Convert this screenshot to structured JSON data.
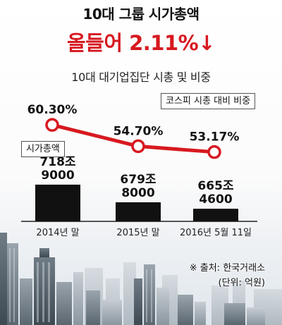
{
  "title": "10대 그룹 시가총액",
  "headline": "올들어 2.11%↓",
  "subtitle": "10대 대기업집단 시총 및 비중",
  "legend": {
    "kospi_share": "코스피 시총 대비 비중",
    "market_cap": "시가총액"
  },
  "source": {
    "line1": "※ 출처: 한국거래소",
    "line2": "(단위: 억원)"
  },
  "colors": {
    "accent": "#d71920",
    "bar": "#111111",
    "text": "#111111"
  },
  "chart_data": {
    "type": "bar",
    "categories": [
      "2014년 말",
      "2015년 말",
      "2016년 5월 11일"
    ],
    "series": [
      {
        "kind": "bar",
        "values": [
          7189000,
          6798000,
          6654600
        ],
        "labels_line1": [
          "718조",
          "679조",
          "665조"
        ],
        "labels_line2": [
          "9000",
          "8000",
          "4600"
        ]
      },
      {
        "kind": "line",
        "values": [
          60.3,
          54.7,
          53.17
        ],
        "labels": [
          "60.30%",
          "54.70%",
          "53.17%"
        ]
      }
    ],
    "title": "10대 대기업집단 시총 및 비중",
    "xlabel": "",
    "ylabel": ""
  }
}
